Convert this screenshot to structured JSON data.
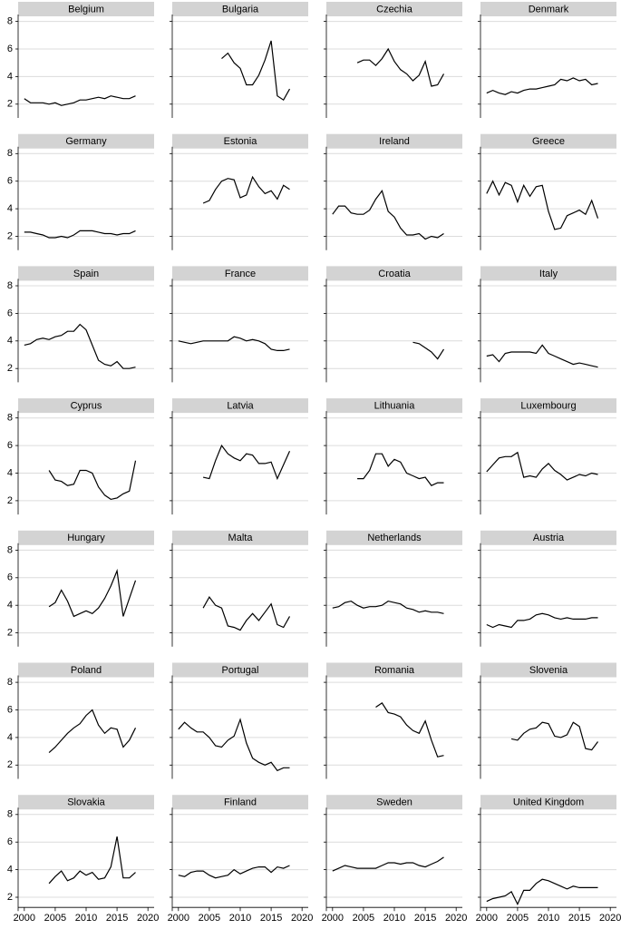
{
  "chart_data": {
    "type": "line",
    "x": [
      2000,
      2001,
      2002,
      2003,
      2004,
      2005,
      2006,
      2007,
      2008,
      2009,
      2010,
      2011,
      2012,
      2013,
      2014,
      2015,
      2016,
      2017,
      2018
    ],
    "xlim": [
      1999,
      2021
    ],
    "xticks": [
      2000,
      2005,
      2010,
      2015,
      2020
    ],
    "ylim": [
      1,
      8.5
    ],
    "yticks": [
      2,
      4,
      6,
      8
    ],
    "grid": true,
    "series": [
      {
        "name": "Belgium",
        "color": "#000000",
        "values": [
          2.4,
          2.1,
          2.1,
          2.1,
          2.0,
          2.1,
          1.9,
          2.0,
          2.1,
          2.3,
          2.3,
          2.4,
          2.5,
          2.4,
          2.6,
          2.5,
          2.4,
          2.4,
          2.6
        ]
      },
      {
        "name": "Bulgaria",
        "color": "#000000",
        "values": [
          null,
          null,
          null,
          null,
          null,
          null,
          null,
          5.3,
          5.7,
          5.0,
          4.6,
          3.4,
          3.4,
          4.1,
          5.2,
          6.6,
          2.6,
          2.3,
          3.1
        ]
      },
      {
        "name": "Czechia",
        "color": "#000000",
        "values": [
          null,
          null,
          null,
          null,
          5.0,
          5.2,
          5.2,
          4.8,
          5.3,
          6.0,
          5.1,
          4.5,
          4.2,
          3.7,
          4.1,
          5.1,
          3.3,
          3.4,
          4.2
        ]
      },
      {
        "name": "Denmark",
        "color": "#000000",
        "values": [
          2.8,
          3.0,
          2.8,
          2.7,
          2.9,
          2.8,
          3.0,
          3.1,
          3.1,
          3.2,
          3.3,
          3.4,
          3.8,
          3.7,
          3.9,
          3.7,
          3.8,
          3.4,
          3.5
        ]
      },
      {
        "name": "Germany",
        "color": "#000000",
        "values": [
          2.3,
          2.3,
          2.2,
          2.1,
          1.9,
          1.9,
          2.0,
          1.9,
          2.1,
          2.4,
          2.4,
          2.4,
          2.3,
          2.2,
          2.2,
          2.1,
          2.2,
          2.2,
          2.4
        ]
      },
      {
        "name": "Estonia",
        "color": "#000000",
        "values": [
          null,
          null,
          null,
          null,
          4.4,
          4.6,
          5.4,
          6.0,
          6.2,
          6.1,
          4.8,
          5.0,
          6.3,
          5.6,
          5.1,
          5.3,
          4.7,
          5.7,
          5.4
        ]
      },
      {
        "name": "Ireland",
        "color": "#000000",
        "values": [
          3.6,
          4.2,
          4.2,
          3.7,
          3.6,
          3.6,
          3.9,
          4.7,
          5.3,
          3.8,
          3.4,
          2.6,
          2.1,
          2.1,
          2.2,
          1.8,
          2.0,
          1.9,
          2.2
        ]
      },
      {
        "name": "Greece",
        "color": "#000000",
        "values": [
          5.1,
          6.0,
          5.0,
          5.9,
          5.7,
          4.5,
          5.7,
          4.9,
          5.6,
          5.7,
          3.8,
          2.5,
          2.6,
          3.5,
          3.7,
          3.9,
          3.6,
          4.6,
          3.3
        ]
      },
      {
        "name": "Spain",
        "color": "#000000",
        "values": [
          3.7,
          3.8,
          4.1,
          4.2,
          4.1,
          4.3,
          4.4,
          4.7,
          4.7,
          5.2,
          4.8,
          3.7,
          2.6,
          2.3,
          2.2,
          2.5,
          2.0,
          2.0,
          2.1
        ]
      },
      {
        "name": "France",
        "color": "#000000",
        "values": [
          4.0,
          3.9,
          3.8,
          3.9,
          4.0,
          4.0,
          4.0,
          4.0,
          4.0,
          4.3,
          4.2,
          4.0,
          4.1,
          4.0,
          3.8,
          3.4,
          3.3,
          3.3,
          3.4
        ]
      },
      {
        "name": "Croatia",
        "color": "#000000",
        "values": [
          null,
          null,
          null,
          null,
          null,
          null,
          null,
          null,
          null,
          null,
          null,
          null,
          null,
          3.9,
          3.8,
          3.5,
          3.2,
          2.7,
          3.4
        ]
      },
      {
        "name": "Italy",
        "color": "#000000",
        "values": [
          2.9,
          3.0,
          2.5,
          3.1,
          3.2,
          3.2,
          3.2,
          3.2,
          3.1,
          3.7,
          3.1,
          2.9,
          2.7,
          2.5,
          2.3,
          2.4,
          2.3,
          2.2,
          2.1
        ]
      },
      {
        "name": "Cyprus",
        "color": "#000000",
        "values": [
          null,
          null,
          null,
          null,
          4.2,
          3.5,
          3.4,
          3.1,
          3.2,
          4.2,
          4.2,
          4.0,
          3.0,
          2.4,
          2.1,
          2.2,
          2.5,
          2.7,
          4.9
        ]
      },
      {
        "name": "Latvia",
        "color": "#000000",
        "values": [
          null,
          null,
          null,
          null,
          3.7,
          3.6,
          4.9,
          6.0,
          5.4,
          5.1,
          4.9,
          5.4,
          5.3,
          4.7,
          4.7,
          4.8,
          3.6,
          4.6,
          5.6
        ]
      },
      {
        "name": "Lithuania",
        "color": "#000000",
        "values": [
          null,
          null,
          null,
          null,
          3.6,
          3.6,
          4.2,
          5.4,
          5.4,
          4.5,
          5.0,
          4.8,
          4.0,
          3.8,
          3.6,
          3.7,
          3.1,
          3.3,
          3.3
        ]
      },
      {
        "name": "Luxembourg",
        "color": "#000000",
        "values": [
          4.1,
          4.6,
          5.1,
          5.2,
          5.2,
          5.5,
          3.7,
          3.8,
          3.7,
          4.3,
          4.7,
          4.2,
          3.9,
          3.5,
          3.7,
          3.9,
          3.8,
          4.0,
          3.9
        ]
      },
      {
        "name": "Hungary",
        "color": "#000000",
        "values": [
          null,
          null,
          null,
          null,
          3.9,
          4.2,
          5.1,
          4.3,
          3.2,
          3.4,
          3.6,
          3.4,
          3.8,
          4.5,
          5.4,
          6.5,
          3.2,
          4.5,
          5.8
        ]
      },
      {
        "name": "Malta",
        "color": "#000000",
        "values": [
          null,
          null,
          null,
          null,
          3.8,
          4.6,
          4.0,
          3.8,
          2.5,
          2.4,
          2.2,
          2.9,
          3.4,
          2.9,
          3.5,
          4.1,
          2.6,
          2.4,
          3.2
        ]
      },
      {
        "name": "Netherlands",
        "color": "#000000",
        "values": [
          3.8,
          3.9,
          4.2,
          4.3,
          4.0,
          3.8,
          3.9,
          3.9,
          4.0,
          4.3,
          4.2,
          4.1,
          3.8,
          3.7,
          3.5,
          3.6,
          3.5,
          3.5,
          3.4
        ]
      },
      {
        "name": "Austria",
        "color": "#000000",
        "values": [
          2.6,
          2.4,
          2.6,
          2.5,
          2.4,
          2.9,
          2.9,
          3.0,
          3.3,
          3.4,
          3.3,
          3.1,
          3.0,
          3.1,
          3.0,
          3.0,
          3.0,
          3.1,
          3.1
        ]
      },
      {
        "name": "Poland",
        "color": "#000000",
        "values": [
          null,
          null,
          null,
          null,
          2.9,
          3.3,
          3.8,
          4.3,
          4.7,
          5.0,
          5.6,
          6.0,
          4.9,
          4.3,
          4.7,
          4.6,
          3.3,
          3.8,
          4.7
        ]
      },
      {
        "name": "Portugal",
        "color": "#000000",
        "values": [
          4.6,
          5.1,
          4.7,
          4.4,
          4.4,
          4.0,
          3.4,
          3.3,
          3.8,
          4.1,
          5.3,
          3.6,
          2.5,
          2.2,
          2.0,
          2.2,
          1.6,
          1.8,
          1.8
        ]
      },
      {
        "name": "Romania",
        "color": "#000000",
        "values": [
          null,
          null,
          null,
          null,
          null,
          null,
          null,
          6.2,
          6.5,
          5.8,
          5.7,
          5.5,
          4.9,
          4.5,
          4.3,
          5.2,
          3.8,
          2.6,
          2.7
        ]
      },
      {
        "name": "Slovenia",
        "color": "#000000",
        "values": [
          null,
          null,
          null,
          null,
          3.9,
          3.8,
          4.3,
          4.6,
          4.7,
          5.1,
          5.0,
          4.1,
          4.0,
          4.2,
          5.1,
          4.8,
          3.2,
          3.1,
          3.7
        ]
      },
      {
        "name": "Slovakia",
        "color": "#000000",
        "values": [
          null,
          null,
          null,
          null,
          3.0,
          3.5,
          3.9,
          3.2,
          3.4,
          3.9,
          3.6,
          3.8,
          3.3,
          3.4,
          4.2,
          6.4,
          3.4,
          3.4,
          3.8
        ]
      },
      {
        "name": "Finland",
        "color": "#000000",
        "values": [
          3.6,
          3.5,
          3.8,
          3.9,
          3.9,
          3.6,
          3.4,
          3.5,
          3.6,
          4.0,
          3.7,
          3.9,
          4.1,
          4.2,
          4.2,
          3.8,
          4.2,
          4.1,
          4.3
        ]
      },
      {
        "name": "Sweden",
        "color": "#000000",
        "values": [
          3.9,
          4.1,
          4.3,
          4.2,
          4.1,
          4.1,
          4.1,
          4.1,
          4.3,
          4.5,
          4.5,
          4.4,
          4.5,
          4.5,
          4.3,
          4.2,
          4.4,
          4.6,
          4.9
        ]
      },
      {
        "name": "United Kingdom",
        "color": "#000000",
        "values": [
          1.7,
          1.9,
          2.0,
          2.1,
          2.4,
          1.5,
          2.5,
          2.5,
          3.0,
          3.3,
          3.2,
          3.0,
          2.8,
          2.6,
          2.8,
          2.7,
          2.7,
          2.7,
          2.7
        ]
      }
    ]
  }
}
